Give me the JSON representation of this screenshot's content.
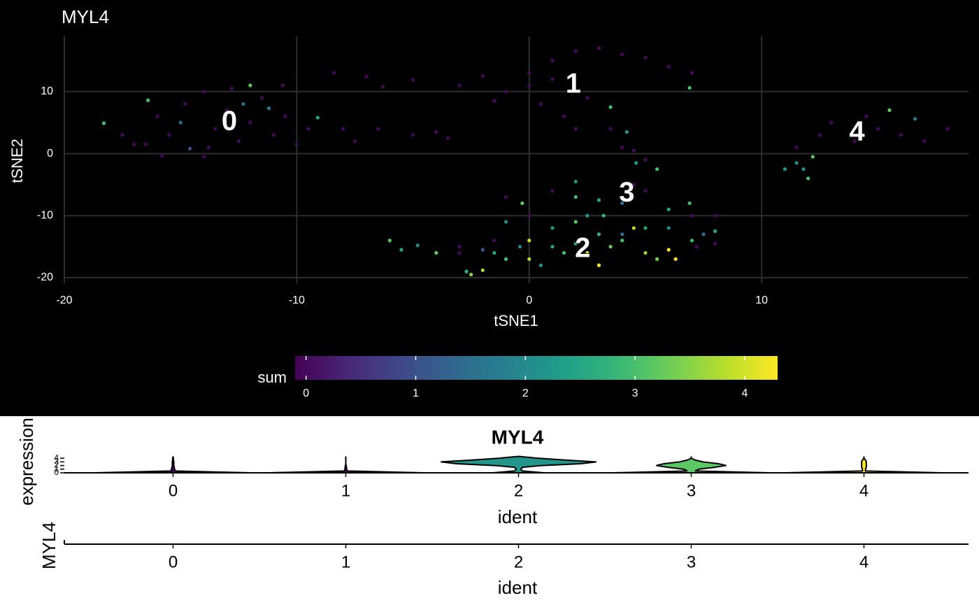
{
  "chart_data": [
    {
      "type": "scatter",
      "title": "MYL4",
      "x_label": "tSNE1",
      "y_label": "tSNE2",
      "x": [
        -18.3,
        -16.4,
        -12.0,
        -11.2,
        -12.3,
        -15,
        -14.6,
        -9.1,
        -17.5,
        -17,
        -16,
        -15.5,
        -14.8,
        -14,
        -13.5,
        -13,
        -12.5,
        -12,
        -11.5,
        -11,
        -10.5,
        -10,
        -9.5,
        -13.8,
        -15.8,
        -14,
        -16.5,
        -12.8,
        -10.6,
        -8.4,
        -7,
        -6.3,
        -5,
        -6.5,
        -5,
        -8,
        -4,
        -3.5,
        -7.5,
        -3,
        -2,
        -1,
        0,
        1,
        2,
        3,
        4,
        5,
        6,
        7,
        0.5,
        1.5,
        2.5,
        3.5,
        4.5,
        5,
        4,
        2,
        0,
        -1.5,
        1,
        6.9,
        3.5,
        4.2,
        4.6,
        11,
        11.5,
        12,
        12.2,
        11.8,
        14,
        15,
        15.5,
        16.6,
        13,
        16,
        17,
        18,
        12.5,
        14.5,
        11.5,
        1,
        2,
        3,
        4,
        5,
        6,
        6.9,
        5.5,
        3.2,
        2.5,
        0,
        -1,
        -0.3,
        2,
        4.5,
        7,
        8,
        -6,
        -5.5,
        -4.8,
        -4,
        -3,
        -2.7,
        -2.5,
        -2,
        -1.5,
        -1,
        -0.4,
        0,
        0,
        0.5,
        1,
        1.5,
        2,
        2.5,
        3,
        3.5,
        4,
        4.5,
        5,
        5.5,
        6,
        6.3,
        7,
        7.5,
        8,
        -1,
        1,
        2,
        3,
        4,
        5,
        6,
        -3,
        -2,
        -1.5,
        7.2,
        8
      ],
      "y": [
        4.9,
        8.6,
        11.0,
        7.3,
        8.0,
        5,
        0.8,
        5.8,
        3.0,
        1.5,
        6,
        3,
        8,
        10,
        4,
        7,
        2,
        5,
        9,
        3,
        6,
        1.5,
        4,
        1,
        -0.3,
        -0.5,
        1.5,
        10.5,
        11,
        13,
        12.4,
        10.8,
        11.9,
        4,
        3,
        4,
        3.5,
        2.5,
        2,
        11,
        12.5,
        10,
        13,
        15,
        16.5,
        17,
        16,
        15.5,
        14,
        13,
        8,
        6,
        9,
        4,
        0.5,
        -1,
        1,
        4,
        11,
        8.5,
        12,
        10.6,
        7.5,
        3.5,
        -1.5,
        -2.5,
        -1.5,
        -4,
        -0.5,
        -2.5,
        2,
        4,
        7,
        5.6,
        5,
        3,
        2,
        4,
        3,
        6,
        1,
        -6,
        -7,
        -7.5,
        -8,
        -6,
        -9,
        -8,
        -2.5,
        -10,
        -10,
        -10,
        -7,
        -8,
        -4.5,
        -5,
        -10,
        -10,
        -14,
        -15.5,
        -14.8,
        -16,
        -15,
        -19,
        -19.5,
        -18.8,
        -16,
        -17,
        -15,
        -14,
        -17,
        -18,
        -15,
        -16,
        -14.5,
        -16,
        -18,
        -15,
        -14,
        -12,
        -16,
        -17,
        -15.5,
        -17,
        -14,
        -13,
        -12.5,
        -11,
        -12,
        -11,
        -13,
        -13,
        -12,
        -12,
        -16,
        -15.5,
        -14,
        -15,
        -14.5
      ],
      "values": [
        3.0,
        3.0,
        3.2,
        1.8,
        1.5,
        1.5,
        1.0,
        2.5,
        0,
        0,
        0,
        0,
        0,
        0,
        0,
        0,
        0,
        0,
        0,
        0,
        0,
        0,
        0,
        0,
        0,
        0,
        0,
        0,
        0,
        0,
        0,
        0,
        0,
        0,
        0,
        0,
        0,
        0,
        0,
        0,
        0,
        0,
        0,
        0,
        0,
        0,
        0,
        0,
        0,
        0,
        0,
        0,
        0,
        0,
        0,
        0,
        0,
        0,
        0,
        0,
        0,
        3.0,
        3.0,
        2.2,
        2.3,
        2.3,
        2.0,
        3.0,
        3.2,
        2.1,
        0,
        0,
        3.3,
        1.8,
        0,
        0,
        0,
        0,
        0,
        0,
        0,
        0,
        3.0,
        2.5,
        1.5,
        0,
        2.5,
        3.0,
        3.0,
        2.8,
        2.3,
        0,
        0,
        3.2,
        2.2,
        0,
        0,
        0,
        3.2,
        2.5,
        2.0,
        3.3,
        0,
        2.8,
        3.5,
        3.7,
        2.5,
        3.0,
        2.0,
        4.0,
        3.8,
        2.2,
        2.5,
        3.0,
        2.8,
        4.0,
        4.3,
        3.3,
        3.0,
        3.8,
        3.6,
        3.4,
        4.2,
        4.3,
        3.0,
        1.5,
        2.5,
        2.0,
        2.3,
        3.2,
        2.8,
        1.5,
        2.5,
        2.0,
        0,
        1.2,
        0,
        0,
        0
      ],
      "xlim": [
        -20,
        18.9
      ],
      "ylim": [
        -20.9,
        18.9
      ],
      "xticks": [
        -20,
        -10,
        0,
        10
      ],
      "yticks": [
        -20,
        -10,
        0,
        10
      ],
      "grid": true,
      "colorscale": "viridis",
      "color_label": "sum",
      "color_lim": [
        -0.1,
        4.3
      ],
      "color_ticks": [
        0,
        1,
        2,
        3,
        4
      ],
      "cluster_labels": {
        "labels": [
          "0",
          "1",
          "2",
          "3",
          "4"
        ],
        "x": [
          -12.9,
          1.9,
          2.3,
          4.2,
          14.1
        ],
        "y": [
          5,
          11,
          -15.5,
          -6.5,
          3.3
        ]
      }
    },
    {
      "type": "violin",
      "title": "MYL4",
      "y_label": "expression",
      "x_label": "ident",
      "categories": [
        "0",
        "1",
        "2",
        "3",
        "4"
      ],
      "colors": [
        "#440154",
        "#440154",
        "#22968b",
        "#5dc863",
        "#fde725"
      ],
      "density_y": [
        0,
        0.5,
        1,
        1.5,
        2,
        2.5,
        3,
        3.5,
        4,
        4.5
      ],
      "densities": [
        [
          1,
          0.03,
          0.02,
          0.015,
          0.01,
          0.01,
          0.01,
          0.005,
          0.005,
          0
        ],
        [
          1,
          0.02,
          0.01,
          0.01,
          0.005,
          0,
          0,
          0,
          0,
          0
        ],
        [
          0.33,
          0.05,
          0.03,
          0.05,
          0.3,
          0.8,
          1,
          0.6,
          0.25,
          0
        ],
        [
          1,
          0.05,
          0.1,
          0.3,
          0.45,
          0.35,
          0.15,
          0.05,
          0,
          0
        ],
        [
          1,
          0.02,
          0.02,
          0.03,
          0.03,
          0.03,
          0.03,
          0.02,
          0,
          0
        ]
      ],
      "ylim": [
        0,
        4.6
      ],
      "yticks": [
        0,
        1,
        2,
        3,
        4
      ]
    },
    {
      "type": "empty",
      "y_label": "MYL4",
      "x_label": "ident",
      "categories": [
        "0",
        "1",
        "2",
        "3",
        "4"
      ]
    }
  ]
}
